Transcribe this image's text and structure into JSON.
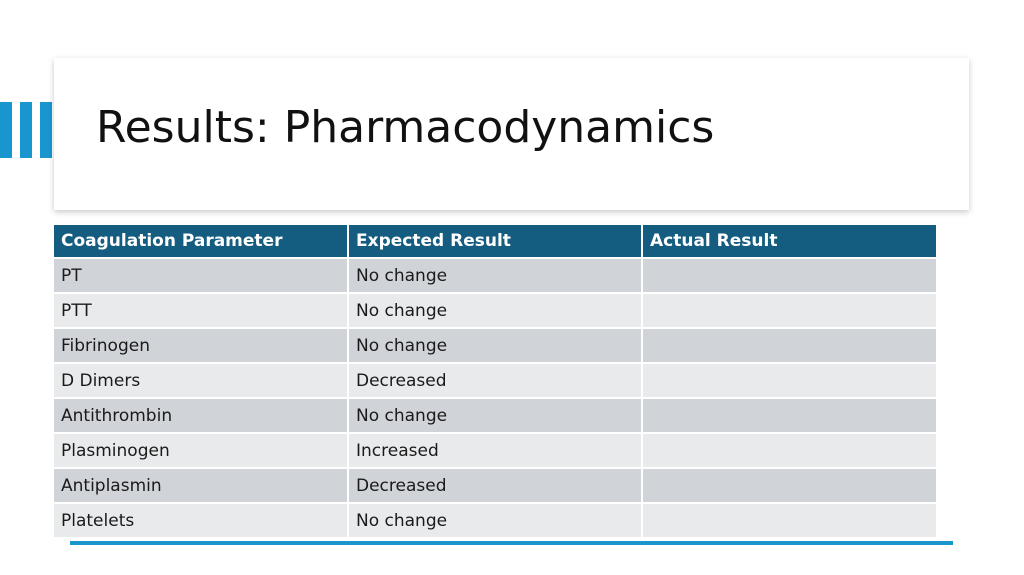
{
  "slide": {
    "title": "Results: Pharmacodynamics",
    "accent_color": "#1a96cf",
    "header_color": "#145c80"
  },
  "table": {
    "headers": [
      "Coagulation Parameter",
      "Expected Result",
      "Actual Result"
    ],
    "rows": [
      [
        "PT",
        "No change",
        ""
      ],
      [
        "PTT",
        "No change",
        ""
      ],
      [
        "Fibrinogen",
        "No change",
        ""
      ],
      [
        "D Dimers",
        "Decreased",
        ""
      ],
      [
        "Antithrombin",
        "No change",
        ""
      ],
      [
        "Plasminogen",
        "Increased",
        ""
      ],
      [
        "Antiplasmin",
        "Decreased",
        ""
      ],
      [
        "Platelets",
        "No change",
        ""
      ]
    ]
  }
}
